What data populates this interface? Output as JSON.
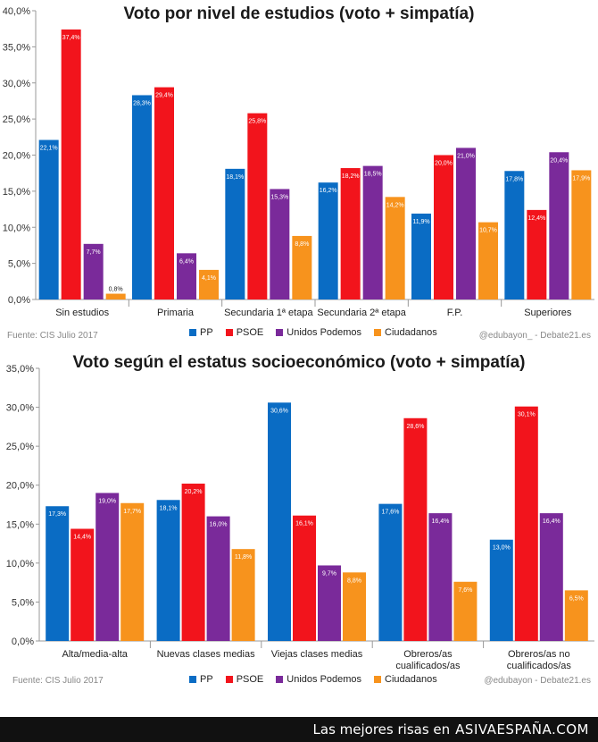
{
  "colors": {
    "PP": "#0a6cc4",
    "PSOE": "#f2141c",
    "Unidos Podemos": "#7a2a9a",
    "Ciudadanos": "#f7931d"
  },
  "legend": [
    "PP",
    "PSOE",
    "Unidos Podemos",
    "Ciudadanos"
  ],
  "chart_data": [
    {
      "type": "bar",
      "title": "Voto por nivel de estudios (voto + simpatía)",
      "categories": [
        "Sin estudios",
        "Primaria",
        "Secundaria 1ª etapa",
        "Secundaria 2ª etapa",
        "F.P.",
        "Superiores"
      ],
      "series": [
        {
          "name": "PP",
          "values": [
            22.1,
            28.3,
            18.1,
            16.2,
            11.9,
            17.8
          ],
          "labels": [
            "22,1%",
            "28,3%",
            "18,1%",
            "16,2%",
            "11,9%",
            "17,8%"
          ]
        },
        {
          "name": "PSOE",
          "values": [
            37.4,
            29.4,
            25.8,
            18.2,
            20.0,
            12.4
          ],
          "labels": [
            "37,4%",
            "29,4%",
            "25,8%",
            "18,2%",
            "20,0%",
            "12,4%"
          ]
        },
        {
          "name": "Unidos Podemos",
          "values": [
            7.7,
            6.4,
            15.3,
            18.5,
            21.0,
            20.4
          ],
          "labels": [
            "7,7%",
            "6,4%",
            "15,3%",
            "18,5%",
            "21,0%",
            "20,4%"
          ]
        },
        {
          "name": "Ciudadanos",
          "values": [
            0.8,
            4.1,
            8.8,
            14.2,
            10.7,
            17.9
          ],
          "labels": [
            "0,8%",
            "4,1%",
            "8,8%",
            "14,2%",
            "10,7%",
            "17,9%"
          ]
        }
      ],
      "ylim": [
        0,
        40
      ],
      "ytick_values": [
        0,
        5,
        10,
        15,
        20,
        25,
        30,
        35,
        40
      ],
      "ytick_labels": [
        "0,0%",
        "5,0%",
        "10,0%",
        "15,0%",
        "20,0%",
        "25,0%",
        "30,0%",
        "35,0%",
        "40,0%"
      ],
      "grid": false,
      "legend_position": "bottom",
      "source": "Fuente: CIS Julio 2017",
      "credit": "@edubayon_ - Debate21.es"
    },
    {
      "type": "bar",
      "title": "Voto según el estatus socioeconómico (voto + simpatía)",
      "categories": [
        "Alta/media-alta",
        "Nuevas clases medias",
        "Viejas clases medias",
        "Obreros/as cualificados/as",
        "Obreros/as no cualificados/as"
      ],
      "series": [
        {
          "name": "PP",
          "values": [
            17.3,
            18.1,
            30.6,
            17.6,
            13.0
          ],
          "labels": [
            "17,3%",
            "18,1%",
            "30,6%",
            "17,6%",
            "13,0%"
          ]
        },
        {
          "name": "PSOE",
          "values": [
            14.4,
            20.2,
            16.1,
            28.6,
            30.1
          ],
          "labels": [
            "14,4%",
            "20,2%",
            "16,1%",
            "28,6%",
            "30,1%"
          ]
        },
        {
          "name": "Unidos Podemos",
          "values": [
            19.0,
            16.0,
            9.7,
            16.4,
            16.4
          ],
          "labels": [
            "19,0%",
            "16,0%",
            "9,7%",
            "16,4%",
            "16,4%"
          ]
        },
        {
          "name": "Ciudadanos",
          "values": [
            17.7,
            11.8,
            8.8,
            7.6,
            6.5
          ],
          "labels": [
            "17,7%",
            "11,8%",
            "8,8%",
            "7,6%",
            "6,5%"
          ]
        }
      ],
      "ylim": [
        0,
        35
      ],
      "ytick_values": [
        0,
        5,
        10,
        15,
        20,
        25,
        30,
        35
      ],
      "ytick_labels": [
        "0,0%",
        "5,0%",
        "10,0%",
        "15,0%",
        "20,0%",
        "25,0%",
        "30,0%",
        "35,0%"
      ],
      "grid": false,
      "legend_position": "bottom",
      "source": "Fuente: CIS Julio 2017",
      "credit": "@edubayon   - Debate21.es"
    }
  ],
  "footer": {
    "tagline": "Las mejores risas en",
    "site": "ASIVAESPAÑA.COM"
  }
}
